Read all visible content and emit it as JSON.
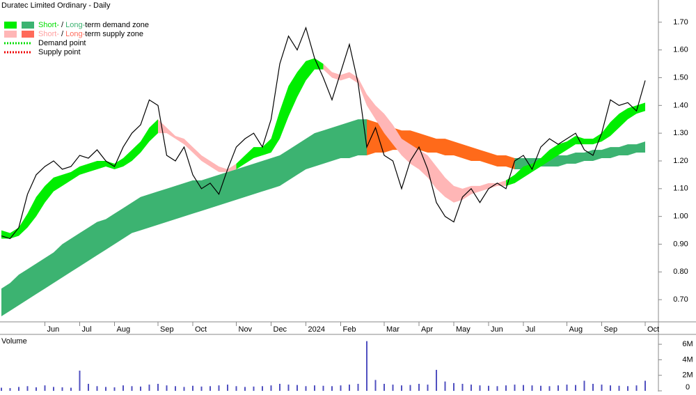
{
  "chart_data": [
    {
      "type": "line",
      "title": "Duratec Limited Ordinary - Daily",
      "color": "#000000",
      "legend": [
        {
          "swatches": [
            "#00ee00",
            "#3cb371"
          ],
          "parts": [
            {
              "text": "Short-",
              "color": "#00dd00"
            },
            {
              "text": " / "
            },
            {
              "text": "Long-",
              "color": "#3cb371"
            },
            {
              "text": "term demand zone"
            }
          ]
        },
        {
          "swatches": [
            "#ffb6b6",
            "#ff6a5a"
          ],
          "parts": [
            {
              "text": "Short-",
              "color": "#ffa0a0"
            },
            {
              "text": " / "
            },
            {
              "text": "Long-",
              "color": "#ff6a5a"
            },
            {
              "text": "term supply zone"
            }
          ]
        },
        {
          "line": "#00dd00",
          "parts": [
            {
              "text": "Demand point"
            }
          ]
        },
        {
          "line": "#ee0000",
          "parts": [
            {
              "text": "Supply point"
            }
          ]
        }
      ],
      "categories": [
        null,
        null,
        null,
        null,
        null,
        "Jun",
        null,
        null,
        null,
        "Jul",
        null,
        null,
        null,
        "Aug",
        null,
        null,
        null,
        null,
        "Sep",
        null,
        null,
        null,
        "Oct",
        null,
        null,
        null,
        null,
        "Nov",
        null,
        null,
        null,
        "Dec",
        null,
        null,
        null,
        "2024",
        null,
        null,
        null,
        "Feb",
        null,
        null,
        null,
        null,
        "Mar",
        null,
        null,
        null,
        "Apr",
        null,
        null,
        null,
        "May",
        null,
        null,
        null,
        "Jun",
        null,
        null,
        null,
        "Jul",
        null,
        null,
        null,
        null,
        "Aug",
        null,
        null,
        null,
        "Sep",
        null,
        null,
        null,
        null,
        "Oct"
      ],
      "values": [
        0.93,
        0.92,
        0.96,
        1.08,
        1.15,
        1.18,
        1.2,
        1.17,
        1.18,
        1.22,
        1.21,
        1.24,
        1.2,
        1.18,
        1.25,
        1.3,
        1.33,
        1.42,
        1.4,
        1.22,
        1.2,
        1.25,
        1.15,
        1.1,
        1.12,
        1.08,
        1.17,
        1.25,
        1.28,
        1.3,
        1.25,
        1.35,
        1.55,
        1.65,
        1.6,
        1.68,
        1.57,
        1.5,
        1.42,
        1.52,
        1.62,
        1.48,
        1.25,
        1.32,
        1.22,
        1.2,
        1.1,
        1.2,
        1.25,
        1.17,
        1.05,
        1.0,
        0.98,
        1.07,
        1.1,
        1.05,
        1.1,
        1.12,
        1.1,
        1.2,
        1.22,
        1.17,
        1.25,
        1.28,
        1.26,
        1.28,
        1.3,
        1.24,
        1.22,
        1.3,
        1.42,
        1.4,
        1.41,
        1.38,
        1.49
      ],
      "zones": [
        {
          "color": "#3cb371",
          "upper": [
            0.74,
            0.76,
            0.79,
            0.81,
            0.83,
            0.85,
            0.87,
            0.9,
            0.92,
            0.94,
            0.96,
            0.98,
            0.99,
            1.01,
            1.03,
            1.05,
            1.07,
            1.08,
            1.09,
            1.1,
            1.11,
            1.12,
            1.13,
            1.13,
            1.14,
            1.15,
            1.16,
            1.17,
            1.18,
            1.19,
            1.2,
            1.21,
            1.22,
            1.24,
            1.26,
            1.28,
            1.3,
            1.31,
            1.32,
            1.33,
            1.34,
            1.35,
            1.35,
            null,
            null,
            null,
            null,
            null,
            null,
            null,
            null,
            null,
            null,
            null,
            null,
            null,
            null,
            null,
            null,
            1.21,
            1.21,
            1.21,
            1.21,
            1.22,
            1.22,
            1.22,
            1.23,
            1.23,
            1.24,
            1.24,
            1.25,
            1.25,
            1.26,
            1.26,
            1.27
          ],
          "lower": [
            0.64,
            0.66,
            0.68,
            0.7,
            0.72,
            0.74,
            0.76,
            0.78,
            0.8,
            0.82,
            0.84,
            0.86,
            0.88,
            0.9,
            0.92,
            0.94,
            0.95,
            0.96,
            0.97,
            0.98,
            0.99,
            1.0,
            1.01,
            1.02,
            1.03,
            1.04,
            1.05,
            1.06,
            1.07,
            1.08,
            1.09,
            1.1,
            1.11,
            1.13,
            1.15,
            1.17,
            1.18,
            1.19,
            1.2,
            1.21,
            1.21,
            1.22,
            1.22,
            null,
            null,
            null,
            null,
            null,
            null,
            null,
            null,
            null,
            null,
            null,
            null,
            null,
            null,
            null,
            null,
            1.17,
            1.17,
            1.17,
            1.18,
            1.18,
            1.18,
            1.19,
            1.19,
            1.2,
            1.2,
            1.21,
            1.21,
            1.22,
            1.22,
            1.23,
            1.23
          ]
        },
        {
          "color": "#ff6a1a",
          "upper": [
            null,
            null,
            null,
            null,
            null,
            null,
            null,
            null,
            null,
            null,
            null,
            null,
            null,
            null,
            null,
            null,
            null,
            null,
            null,
            null,
            null,
            null,
            null,
            null,
            null,
            null,
            null,
            null,
            null,
            null,
            null,
            null,
            null,
            null,
            null,
            null,
            null,
            null,
            null,
            null,
            null,
            null,
            1.35,
            1.34,
            1.33,
            1.32,
            1.31,
            1.31,
            1.3,
            1.29,
            1.28,
            1.28,
            1.27,
            1.26,
            1.25,
            1.24,
            1.23,
            1.22,
            1.22,
            1.21,
            null,
            null,
            null,
            null,
            null,
            null,
            null,
            null,
            null,
            null,
            null,
            null,
            null,
            null,
            null
          ],
          "lower": [
            null,
            null,
            null,
            null,
            null,
            null,
            null,
            null,
            null,
            null,
            null,
            null,
            null,
            null,
            null,
            null,
            null,
            null,
            null,
            null,
            null,
            null,
            null,
            null,
            null,
            null,
            null,
            null,
            null,
            null,
            null,
            null,
            null,
            null,
            null,
            null,
            null,
            null,
            null,
            null,
            null,
            null,
            1.22,
            1.23,
            1.23,
            1.24,
            1.24,
            1.24,
            1.24,
            1.23,
            1.23,
            1.22,
            1.22,
            1.21,
            1.2,
            1.2,
            1.19,
            1.18,
            1.18,
            1.17,
            null,
            null,
            null,
            null,
            null,
            null,
            null,
            null,
            null,
            null,
            null,
            null,
            null,
            null,
            null
          ]
        },
        {
          "color": "#00ee00",
          "upper": [
            0.95,
            0.94,
            0.96,
            1.01,
            1.07,
            1.11,
            1.14,
            1.15,
            1.16,
            1.18,
            1.19,
            1.2,
            1.2,
            1.19,
            1.21,
            1.24,
            1.27,
            1.32,
            1.35,
            null,
            null,
            null,
            null,
            null,
            null,
            null,
            null,
            1.19,
            1.22,
            1.25,
            1.25,
            1.28,
            1.38,
            1.47,
            1.52,
            1.56,
            1.57,
            1.55,
            null,
            null,
            null,
            null,
            null,
            null,
            null,
            null,
            null,
            null,
            null,
            null,
            null,
            null,
            null,
            null,
            null,
            null,
            null,
            null,
            1.13,
            1.15,
            1.18,
            1.19,
            1.21,
            1.24,
            1.26,
            1.27,
            1.29,
            1.28,
            1.28,
            1.3,
            1.34,
            1.37,
            1.39,
            1.4,
            1.41
          ],
          "lower": [
            0.92,
            0.92,
            0.93,
            0.96,
            1.0,
            1.05,
            1.09,
            1.11,
            1.13,
            1.15,
            1.16,
            1.17,
            1.18,
            1.17,
            1.18,
            1.2,
            1.23,
            1.27,
            1.3,
            null,
            null,
            null,
            null,
            null,
            null,
            null,
            null,
            1.17,
            1.19,
            1.21,
            1.22,
            1.23,
            1.28,
            1.36,
            1.43,
            1.49,
            1.53,
            1.53,
            null,
            null,
            null,
            null,
            null,
            null,
            null,
            null,
            null,
            null,
            null,
            null,
            null,
            null,
            null,
            null,
            null,
            null,
            null,
            null,
            1.11,
            1.12,
            1.14,
            1.16,
            1.18,
            1.2,
            1.22,
            1.24,
            1.26,
            1.26,
            1.26,
            1.27,
            1.29,
            1.32,
            1.35,
            1.37,
            1.38
          ]
        },
        {
          "color": "#ffb6b6",
          "upper": [
            null,
            null,
            null,
            null,
            null,
            null,
            null,
            null,
            null,
            null,
            null,
            null,
            null,
            null,
            null,
            null,
            null,
            null,
            1.35,
            1.32,
            1.29,
            1.28,
            1.25,
            1.22,
            1.2,
            1.18,
            1.17,
            1.19,
            null,
            null,
            null,
            null,
            null,
            null,
            null,
            null,
            null,
            1.55,
            1.52,
            1.51,
            1.52,
            1.5,
            1.44,
            1.4,
            1.37,
            1.33,
            1.28,
            1.26,
            1.24,
            1.22,
            1.18,
            1.14,
            1.11,
            1.1,
            1.11,
            1.11,
            1.12,
            1.12,
            1.13,
            null,
            null,
            null,
            null,
            null,
            null,
            null,
            null,
            null,
            null,
            null,
            null,
            null,
            null,
            null,
            null
          ],
          "lower": [
            null,
            null,
            null,
            null,
            null,
            null,
            null,
            null,
            null,
            null,
            null,
            null,
            null,
            null,
            null,
            null,
            null,
            null,
            1.3,
            1.3,
            1.28,
            1.26,
            1.23,
            1.2,
            1.18,
            1.16,
            1.16,
            1.17,
            null,
            null,
            null,
            null,
            null,
            null,
            null,
            null,
            null,
            1.53,
            1.5,
            1.49,
            1.5,
            1.48,
            1.4,
            1.35,
            1.3,
            1.26,
            1.22,
            1.19,
            1.17,
            1.14,
            1.1,
            1.07,
            1.05,
            1.06,
            1.08,
            1.09,
            1.1,
            1.11,
            1.11,
            null,
            null,
            null,
            null,
            null,
            null,
            null,
            null,
            null,
            null,
            null,
            null,
            null,
            null,
            null,
            null
          ]
        }
      ],
      "ylim": [
        0.62,
        1.78
      ],
      "yticks": [
        {
          "value": 0.7,
          "label": "0.70"
        },
        {
          "value": 0.8,
          "label": "0.80"
        },
        {
          "value": 0.9,
          "label": "0.90"
        },
        {
          "value": 1.0,
          "label": "1.00"
        },
        {
          "value": 1.1,
          "label": "1.10"
        },
        {
          "value": 1.2,
          "label": "1.20"
        },
        {
          "value": 1.3,
          "label": "1.30"
        },
        {
          "value": 1.4,
          "label": "1.40"
        },
        {
          "value": 1.5,
          "label": "1.50"
        },
        {
          "value": 1.6,
          "label": "1.60"
        },
        {
          "value": 1.7,
          "label": "1.70"
        }
      ]
    },
    {
      "type": "bar",
      "title": "Volume",
      "color": "#5050c0",
      "values": [
        400000,
        350000,
        500000,
        600000,
        450000,
        700000,
        500000,
        450000,
        400000,
        2600000,
        900000,
        600000,
        500000,
        450000,
        700000,
        600000,
        550000,
        800000,
        900000,
        700000,
        600000,
        500000,
        650000,
        550000,
        600000,
        700000,
        800000,
        600000,
        500000,
        550000,
        600000,
        700000,
        900000,
        800000,
        750000,
        600000,
        700000,
        650000,
        600000,
        700000,
        800000,
        900000,
        6400000,
        1400000,
        900000,
        800000,
        700000,
        750000,
        900000,
        800000,
        2700000,
        1200000,
        1000000,
        900000,
        800000,
        700000,
        650000,
        600000,
        700000,
        800000,
        750000,
        700000,
        650000,
        600000,
        700000,
        800000,
        750000,
        1300000,
        900000,
        800000,
        700000,
        650000,
        600000,
        700000,
        1300000
      ],
      "ylim": [
        0,
        7000000
      ],
      "yticks": [
        0,
        {
          "value": 2000000,
          "label": "2M"
        },
        {
          "value": 4000000,
          "label": "4M"
        },
        {
          "value": 6000000,
          "label": "6M"
        }
      ]
    }
  ]
}
